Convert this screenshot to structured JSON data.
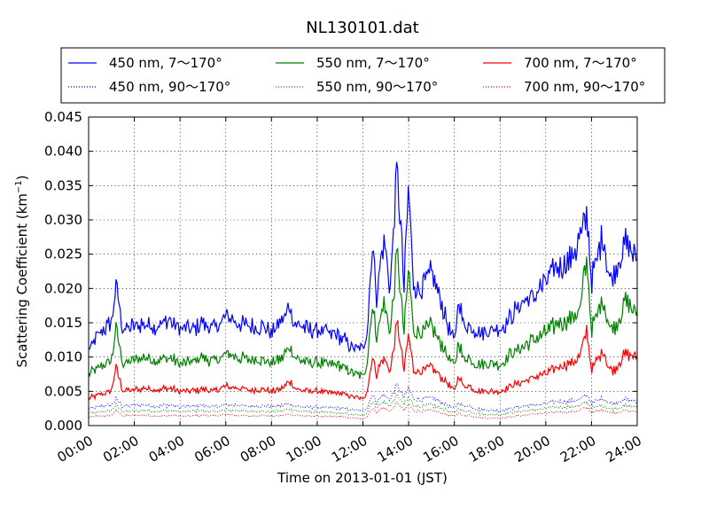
{
  "chart_data": {
    "type": "line",
    "title": "NL130101.dat",
    "xlabel": "Time on 2013-01-01 (JST)",
    "ylabel": "Scattering Coefficient (km",
    "ylabel_sup": "−1",
    "ylabel_end": ")",
    "x_tick_labels": [
      "00:00",
      "02:00",
      "04:00",
      "06:00",
      "08:00",
      "10:00",
      "12:00",
      "14:00",
      "16:00",
      "18:00",
      "20:00",
      "22:00",
      "24:00"
    ],
    "y_tick_labels": [
      "0.000",
      "0.005",
      "0.010",
      "0.015",
      "0.020",
      "0.025",
      "0.030",
      "0.035",
      "0.040",
      "0.045"
    ],
    "xlim_hours": [
      0,
      24
    ],
    "ylim": [
      0,
      0.045
    ],
    "grid": true,
    "legend_placement": "top",
    "x": [
      0,
      0.5,
      1,
      1.2,
      1.5,
      2,
      2.5,
      3,
      3.5,
      4,
      4.5,
      5,
      5.5,
      6,
      6.5,
      7,
      7.5,
      8,
      8.5,
      8.8,
      9,
      9.5,
      10,
      10.5,
      11,
      11.5,
      12,
      12.2,
      12.4,
      12.6,
      12.9,
      13.2,
      13.5,
      13.8,
      14,
      14.2,
      14.5,
      15,
      15.5,
      16,
      16.2,
      16.4,
      16.6,
      17,
      17.5,
      18,
      18.5,
      19,
      19.5,
      20,
      20.5,
      21,
      21.5,
      21.8,
      22,
      22.5,
      22.8,
      23,
      23.5,
      24
    ],
    "series": [
      {
        "name": "450 nm, 7～170°",
        "color": "#0000ff",
        "style": "solid",
        "values": [
          0.011,
          0.0135,
          0.015,
          0.0205,
          0.014,
          0.0145,
          0.015,
          0.0145,
          0.0155,
          0.014,
          0.014,
          0.015,
          0.014,
          0.016,
          0.015,
          0.0145,
          0.0145,
          0.0135,
          0.0155,
          0.0175,
          0.015,
          0.014,
          0.014,
          0.0135,
          0.013,
          0.0115,
          0.011,
          0.014,
          0.027,
          0.019,
          0.027,
          0.02,
          0.038,
          0.02,
          0.035,
          0.021,
          0.02,
          0.022,
          0.017,
          0.012,
          0.019,
          0.014,
          0.015,
          0.0135,
          0.014,
          0.014,
          0.016,
          0.018,
          0.019,
          0.021,
          0.023,
          0.024,
          0.027,
          0.031,
          0.021,
          0.028,
          0.021,
          0.022,
          0.027,
          0.024
        ]
      },
      {
        "name": "450 nm, 90～170°",
        "color": "#0000ff",
        "style": "dotted",
        "values": [
          0.0025,
          0.0028,
          0.003,
          0.0038,
          0.0028,
          0.003,
          0.003,
          0.0028,
          0.003,
          0.0027,
          0.0028,
          0.003,
          0.0027,
          0.003,
          0.003,
          0.0028,
          0.0029,
          0.0027,
          0.003,
          0.0032,
          0.0029,
          0.0027,
          0.0027,
          0.0026,
          0.0025,
          0.0023,
          0.0022,
          0.0028,
          0.0045,
          0.0035,
          0.0045,
          0.0038,
          0.006,
          0.004,
          0.0055,
          0.004,
          0.0038,
          0.004,
          0.0033,
          0.0025,
          0.0035,
          0.0028,
          0.003,
          0.0024,
          0.0022,
          0.0022,
          0.0025,
          0.0028,
          0.003,
          0.0032,
          0.0035,
          0.0035,
          0.0038,
          0.0045,
          0.0033,
          0.004,
          0.0033,
          0.0033,
          0.0038,
          0.0035
        ]
      },
      {
        "name": "550 nm, 7～170°",
        "color": "#008000",
        "style": "solid",
        "values": [
          0.0075,
          0.0085,
          0.0095,
          0.014,
          0.009,
          0.0095,
          0.01,
          0.0095,
          0.01,
          0.009,
          0.0092,
          0.01,
          0.0092,
          0.0105,
          0.01,
          0.0095,
          0.0097,
          0.009,
          0.01,
          0.0115,
          0.01,
          0.0092,
          0.0092,
          0.009,
          0.0088,
          0.0078,
          0.0072,
          0.0095,
          0.018,
          0.013,
          0.018,
          0.0135,
          0.025,
          0.0135,
          0.023,
          0.014,
          0.0135,
          0.0145,
          0.0115,
          0.0085,
          0.0125,
          0.0095,
          0.01,
          0.0088,
          0.009,
          0.009,
          0.0105,
          0.0115,
          0.0125,
          0.0135,
          0.015,
          0.0155,
          0.017,
          0.0245,
          0.014,
          0.0185,
          0.014,
          0.0145,
          0.018,
          0.016
        ]
      },
      {
        "name": "550 nm, 90～170°",
        "color": "#008000",
        "style": "dotted",
        "values": [
          0.0018,
          0.002,
          0.0022,
          0.003,
          0.002,
          0.0022,
          0.0022,
          0.0021,
          0.0022,
          0.002,
          0.0021,
          0.0022,
          0.002,
          0.0023,
          0.0022,
          0.0021,
          0.0021,
          0.002,
          0.0022,
          0.0024,
          0.0022,
          0.002,
          0.002,
          0.0019,
          0.0018,
          0.0016,
          0.0015,
          0.002,
          0.0035,
          0.0027,
          0.0035,
          0.0029,
          0.0045,
          0.003,
          0.0042,
          0.003,
          0.0028,
          0.003,
          0.0024,
          0.0018,
          0.0026,
          0.002,
          0.0022,
          0.0017,
          0.0016,
          0.0016,
          0.0019,
          0.0021,
          0.0023,
          0.0025,
          0.0027,
          0.0027,
          0.0029,
          0.0035,
          0.0025,
          0.003,
          0.0025,
          0.0025,
          0.0029,
          0.0027
        ]
      },
      {
        "name": "700 nm, 7～170°",
        "color": "#ff0000",
        "style": "solid",
        "values": [
          0.004,
          0.0045,
          0.005,
          0.0085,
          0.005,
          0.0052,
          0.0055,
          0.0052,
          0.0055,
          0.005,
          0.005,
          0.0053,
          0.005,
          0.0057,
          0.0055,
          0.0052,
          0.0053,
          0.005,
          0.0055,
          0.0065,
          0.0055,
          0.005,
          0.005,
          0.0048,
          0.0047,
          0.0043,
          0.0038,
          0.0052,
          0.01,
          0.0075,
          0.01,
          0.0078,
          0.015,
          0.008,
          0.0135,
          0.0082,
          0.0078,
          0.0085,
          0.0068,
          0.005,
          0.0075,
          0.0055,
          0.0058,
          0.005,
          0.005,
          0.005,
          0.0058,
          0.0065,
          0.007,
          0.0075,
          0.0085,
          0.009,
          0.01,
          0.014,
          0.008,
          0.011,
          0.008,
          0.0082,
          0.0105,
          0.01
        ]
      },
      {
        "name": "700 nm, 90～170°",
        "color": "#ff0000",
        "style": "dotted",
        "values": [
          0.0012,
          0.0014,
          0.0015,
          0.0022,
          0.0014,
          0.0015,
          0.0015,
          0.0014,
          0.0015,
          0.0014,
          0.0014,
          0.0015,
          0.0014,
          0.0016,
          0.0015,
          0.0014,
          0.0015,
          0.0014,
          0.0015,
          0.0017,
          0.0015,
          0.0014,
          0.0014,
          0.0013,
          0.0013,
          0.0011,
          0.001,
          0.0014,
          0.0026,
          0.002,
          0.0026,
          0.0021,
          0.0033,
          0.0022,
          0.0031,
          0.0022,
          0.0021,
          0.0022,
          0.0018,
          0.0013,
          0.0019,
          0.0014,
          0.0016,
          0.0012,
          0.0011,
          0.0011,
          0.0013,
          0.0015,
          0.0017,
          0.0018,
          0.002,
          0.002,
          0.0022,
          0.0027,
          0.0019,
          0.0023,
          0.0019,
          0.0019,
          0.0022,
          0.002
        ]
      }
    ],
    "legend_order": [
      0,
      2,
      4,
      1,
      3,
      5
    ]
  }
}
